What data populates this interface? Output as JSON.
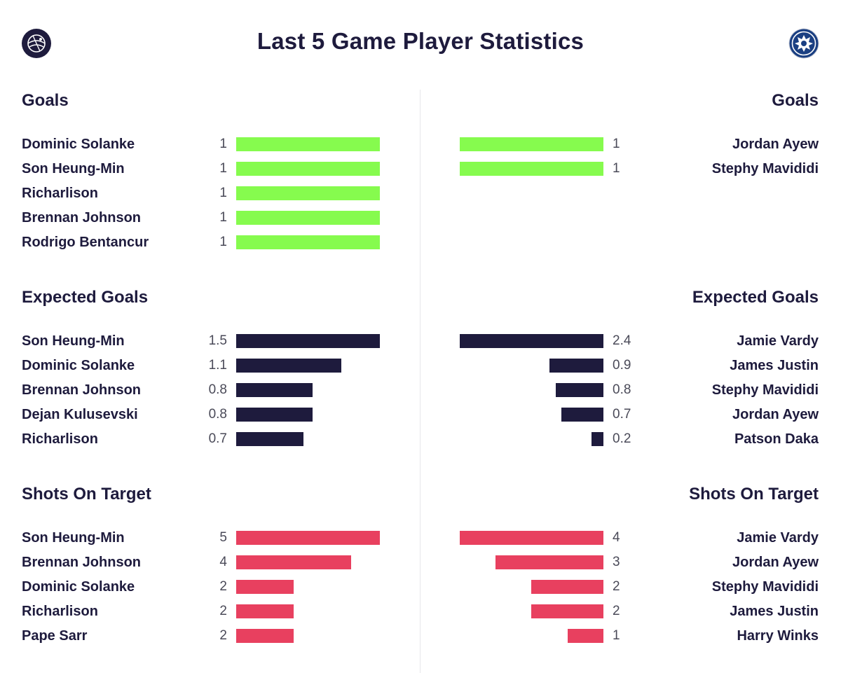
{
  "title": "Last 5 Game Player Statistics",
  "colors": {
    "goals": "#86fb4e",
    "expected_goals": "#1e1b3d",
    "shots_on_target": "#e8405f",
    "text": "#1e1b3d"
  },
  "teams": {
    "left": {
      "crest_icon": "tottenham-crest-icon"
    },
    "right": {
      "crest_icon": "leicester-crest-icon"
    }
  },
  "chart_data": [
    {
      "type": "bar",
      "title": "Goals",
      "side": "left",
      "categories": [
        "Dominic Solanke",
        "Son Heung-Min",
        "Richarlison",
        "Brennan Johnson",
        "Rodrigo Bentancur"
      ],
      "values": [
        1,
        1,
        1,
        1,
        1
      ],
      "value_labels": [
        "1",
        "1",
        "1",
        "1",
        "1"
      ],
      "color": "#86fb4e"
    },
    {
      "type": "bar",
      "title": "Goals",
      "side": "right",
      "categories": [
        "Jordan Ayew",
        "Stephy Mavididi"
      ],
      "values": [
        1,
        1
      ],
      "value_labels": [
        "1",
        "1"
      ],
      "color": "#86fb4e"
    },
    {
      "type": "bar",
      "title": "Expected Goals",
      "side": "left",
      "categories": [
        "Son Heung-Min",
        "Dominic Solanke",
        "Brennan Johnson",
        "Dejan Kulusevski",
        "Richarlison"
      ],
      "values": [
        1.5,
        1.1,
        0.8,
        0.8,
        0.7
      ],
      "value_labels": [
        "1.5",
        "1.1",
        "0.8",
        "0.8",
        "0.7"
      ],
      "color": "#1e1b3d"
    },
    {
      "type": "bar",
      "title": "Expected Goals",
      "side": "right",
      "categories": [
        "Jamie Vardy",
        "James Justin",
        "Stephy Mavididi",
        "Jordan Ayew",
        "Patson Daka"
      ],
      "values": [
        2.4,
        0.9,
        0.8,
        0.7,
        0.2
      ],
      "value_labels": [
        "2.4",
        "0.9",
        "0.8",
        "0.7",
        "0.2"
      ],
      "color": "#1e1b3d"
    },
    {
      "type": "bar",
      "title": "Shots On Target",
      "side": "left",
      "categories": [
        "Son Heung-Min",
        "Brennan Johnson",
        "Dominic Solanke",
        "Richarlison",
        "Pape Sarr"
      ],
      "values": [
        5,
        4,
        2,
        2,
        2
      ],
      "value_labels": [
        "5",
        "4",
        "2",
        "2",
        "2"
      ],
      "color": "#e8405f"
    },
    {
      "type": "bar",
      "title": "Shots On Target",
      "side": "right",
      "categories": [
        "Jamie Vardy",
        "Jordan Ayew",
        "Stephy Mavididi",
        "James Justin",
        "Harry Winks"
      ],
      "values": [
        4,
        3,
        2,
        2,
        1
      ],
      "value_labels": [
        "4",
        "3",
        "2",
        "2",
        "1"
      ],
      "color": "#e8405f"
    }
  ]
}
